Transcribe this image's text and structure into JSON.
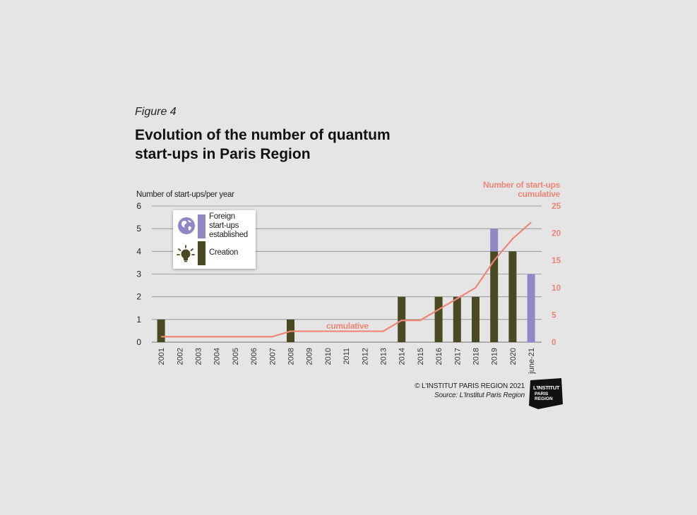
{
  "figure_label": "Figure 4",
  "title_line1": "Evolution of the number of quantum",
  "title_line2": "start-ups in Paris Region",
  "legend": {
    "foreign": "Foreign start-ups established",
    "foreign_l1": "Foreign",
    "foreign_l2": "start-ups",
    "foreign_l3": "established",
    "creation": "Creation"
  },
  "copyright": "© L'INSTITUT PARIS REGION 2021",
  "source": "Source: L'Institut Paris Region",
  "logo": {
    "line1": "L'INSTITUT",
    "line2": "PARIS",
    "line3": "REGION"
  },
  "colors": {
    "creation": "#4a4a22",
    "foreign": "#9187c4",
    "cumulative": "#ec8677",
    "grid": "#8a8a8a",
    "background": "#e6e5e5"
  },
  "chart_data": {
    "type": "bar",
    "categories": [
      "2001",
      "2002",
      "2003",
      "2004",
      "2005",
      "2006",
      "2007",
      "2008",
      "2009",
      "2010",
      "2011",
      "2012",
      "2013",
      "2014",
      "2015",
      "2016",
      "2017",
      "2018",
      "2019",
      "2020",
      "june-21"
    ],
    "series": [
      {
        "name": "Creation",
        "values": [
          1,
          0,
          0,
          0,
          0,
          0,
          0,
          1,
          0,
          0,
          0,
          0,
          0,
          2,
          0,
          2,
          2,
          2,
          4,
          4,
          0
        ]
      },
      {
        "name": "Foreign start-ups established",
        "values": [
          0,
          0,
          0,
          0,
          0,
          0,
          0,
          0,
          0,
          0,
          0,
          0,
          0,
          0,
          0,
          0,
          0,
          0,
          1,
          0,
          3
        ]
      },
      {
        "name": "cumulative",
        "type": "line",
        "axis": "right",
        "values": [
          1,
          1,
          1,
          1,
          1,
          1,
          1,
          2,
          2,
          2,
          2,
          2,
          2,
          4,
          4,
          6,
          8,
          10,
          15,
          19,
          22
        ]
      }
    ],
    "ylabel": "Number of start-ups/per year",
    "ylim": [
      0,
      6
    ],
    "yticks": [
      0,
      1,
      2,
      3,
      4,
      5,
      6
    ],
    "y2label_line1": "Number of start-ups",
    "y2label_line2": "cumulative",
    "y2lim": [
      0,
      25
    ],
    "y2ticks": [
      0,
      5,
      10,
      15,
      20,
      25
    ],
    "line_label": "cumulative",
    "grid": true,
    "legend_position": "top-left"
  }
}
